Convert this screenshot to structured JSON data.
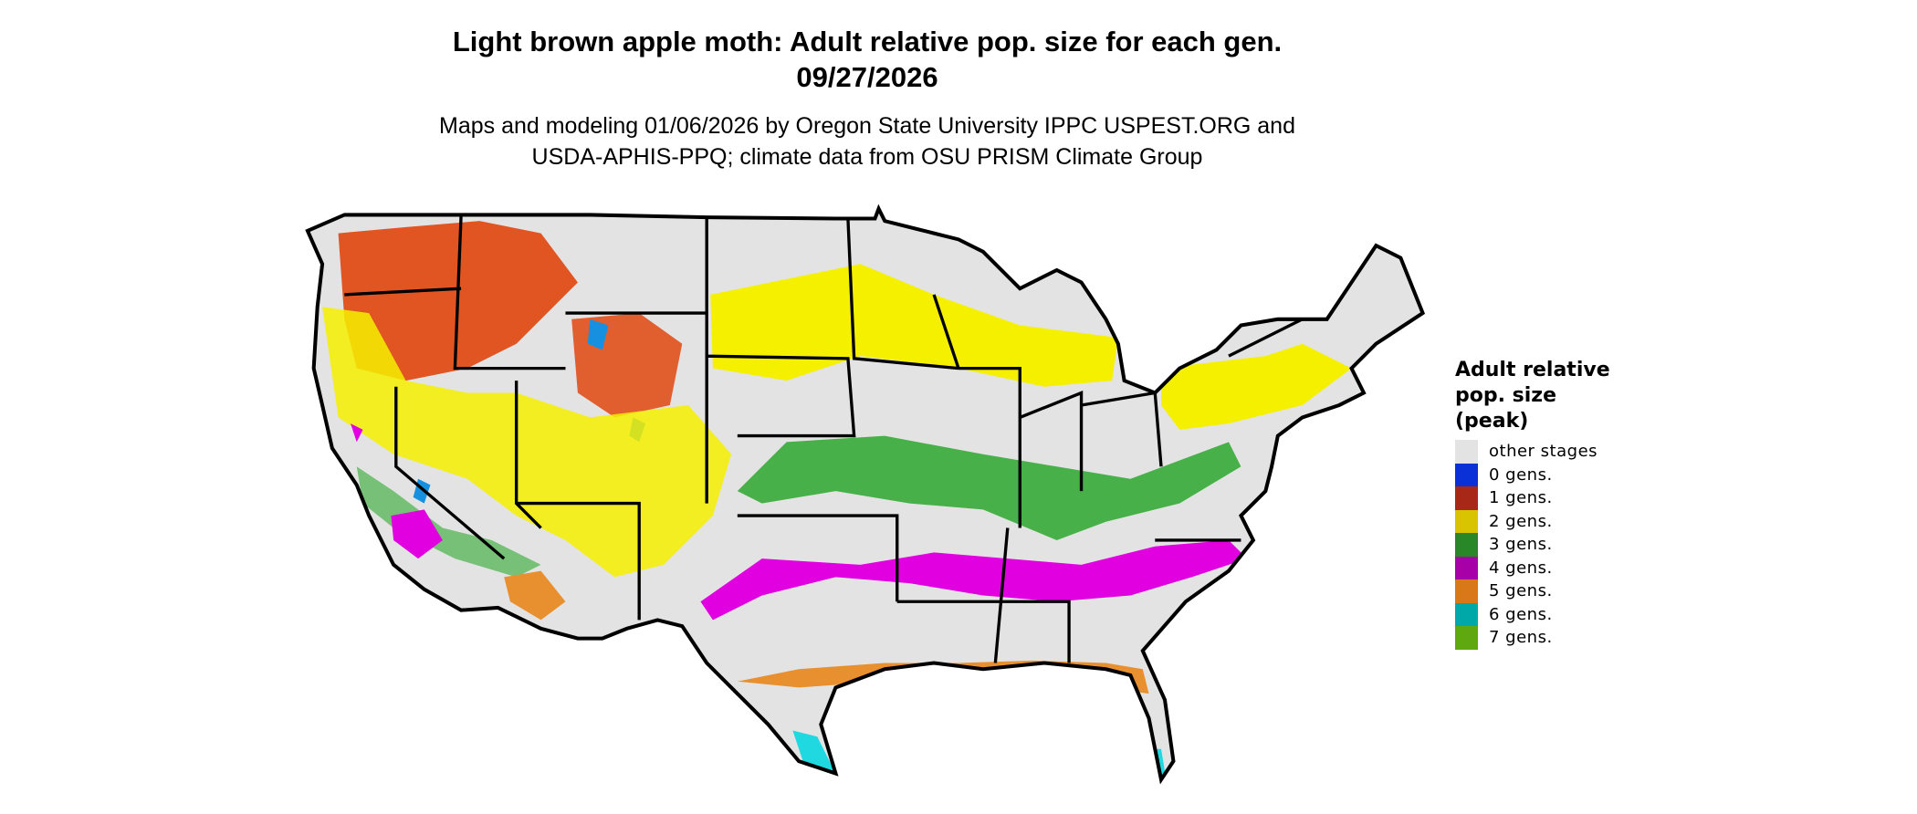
{
  "title": {
    "line1": "Light brown apple moth: Adult relative pop. size for each gen.",
    "line2": "09/27/2026"
  },
  "subtitle": {
    "line1": "Maps and modeling 01/06/2026 by Oregon State University IPPC USPEST.ORG and",
    "line2": "USDA-APHIS-PPQ; climate data from OSU PRISM Climate Group"
  },
  "legend": {
    "title_lines": [
      "Adult relative",
      "pop. size",
      "(peak)"
    ],
    "items": [
      {
        "label": "other stages",
        "color": "#e3e3e3"
      },
      {
        "label": "0 gens.",
        "color": "#0a30d8"
      },
      {
        "label": "1 gens.",
        "color": "#a82818"
      },
      {
        "label": "2 gens.",
        "color": "#d8c400"
      },
      {
        "label": "3 gens.",
        "color": "#288828"
      },
      {
        "label": "4 gens.",
        "color": "#a800a8"
      },
      {
        "label": "5 gens.",
        "color": "#d87818"
      },
      {
        "label": "6 gens.",
        "color": "#00a8a8"
      },
      {
        "label": "7 gens.",
        "color": "#60a810"
      }
    ]
  },
  "map": {
    "region": "contiguous United States",
    "background_color": "#e3e3e3",
    "border_color": "#000000",
    "display_colors": {
      "yellow": "#f4f000",
      "green": "#48b048",
      "magenta": "#e000e0",
      "orange": "#e89030",
      "cyan": "#20d8e0",
      "red": "#e03c00",
      "blue": "#1890e0"
    }
  }
}
